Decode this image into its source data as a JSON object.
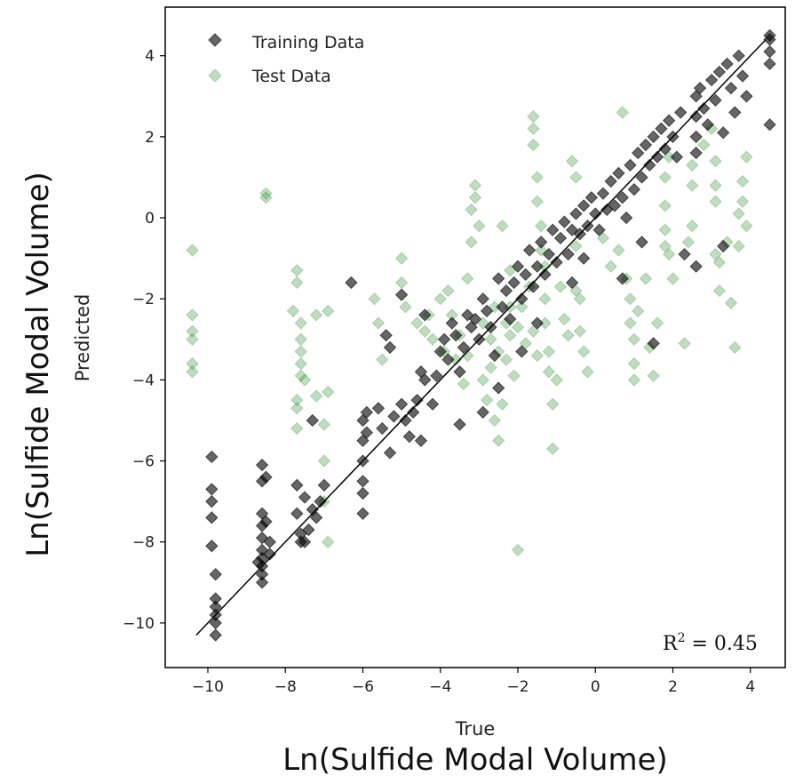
{
  "chart_data": {
    "type": "scatter",
    "title": "",
    "xlabel": "True",
    "ylabel": "Predicted",
    "xlabel_outer": "Ln(Sulfide Modal Volume)",
    "ylabel_outer": "Ln(Sulfide Modal Volume)",
    "xlim": [
      -11.1,
      4.9
    ],
    "ylim": [
      -11.1,
      5.2
    ],
    "xticks": [
      -10,
      -8,
      -6,
      -4,
      -2,
      0,
      2,
      4
    ],
    "yticks": [
      -10,
      -8,
      -6,
      -4,
      -2,
      0,
      2,
      4
    ],
    "xtick_labels": [
      "−10",
      "−8",
      "−6",
      "−4",
      "−2",
      "0",
      "2",
      "4"
    ],
    "ytick_labels": [
      "−10",
      "−8",
      "−6",
      "−4",
      "−2",
      "0",
      "2",
      "4"
    ],
    "grid": false,
    "legend_position": "top-left",
    "annotation": {
      "base": "R",
      "sup": "2",
      "rest": " = 0.45"
    },
    "identity_line": {
      "x": [
        -10.3,
        4.4
      ],
      "y": [
        -10.3,
        4.4
      ],
      "color": "#000000"
    },
    "series": [
      {
        "name": "Training Data",
        "marker": "diamond",
        "color": "#000000",
        "opacity": 0.6,
        "points": [
          [
            -9.9,
            -5.9
          ],
          [
            -9.9,
            -6.7
          ],
          [
            -9.9,
            -7.0
          ],
          [
            -9.9,
            -7.4
          ],
          [
            -9.9,
            -8.1
          ],
          [
            -9.8,
            -8.8
          ],
          [
            -9.8,
            -9.6
          ],
          [
            -9.8,
            -9.8
          ],
          [
            -9.8,
            -10.0
          ],
          [
            -9.8,
            -10.3
          ],
          [
            -9.8,
            -9.4
          ],
          [
            -8.6,
            -6.1
          ],
          [
            -8.6,
            -6.5
          ],
          [
            -8.6,
            -7.3
          ],
          [
            -8.6,
            -7.6
          ],
          [
            -8.6,
            -7.9
          ],
          [
            -8.6,
            -8.2
          ],
          [
            -8.6,
            -8.4
          ],
          [
            -8.6,
            -8.6
          ],
          [
            -8.6,
            -8.8
          ],
          [
            -8.6,
            -9.0
          ],
          [
            -8.5,
            -7.5
          ],
          [
            -8.4,
            -8.3
          ],
          [
            -8.7,
            -8.5
          ],
          [
            -8.5,
            -6.4
          ],
          [
            -8.4,
            -8.0
          ],
          [
            -7.7,
            -6.6
          ],
          [
            -7.7,
            -7.3
          ],
          [
            -7.6,
            -7.8
          ],
          [
            -7.6,
            -8.0
          ],
          [
            -7.5,
            -6.9
          ],
          [
            -7.3,
            -5.0
          ],
          [
            -7.3,
            -7.2
          ],
          [
            -7.2,
            -7.4
          ],
          [
            -7.1,
            -7.0
          ],
          [
            -7.0,
            -6.6
          ],
          [
            -7.4,
            -7.7
          ],
          [
            -7.5,
            -8.0
          ],
          [
            -6.0,
            -5.0
          ],
          [
            -6.0,
            -5.5
          ],
          [
            -6.0,
            -6.0
          ],
          [
            -6.0,
            -6.5
          ],
          [
            -6.0,
            -6.8
          ],
          [
            -6.0,
            -7.3
          ],
          [
            -5.9,
            -4.8
          ],
          [
            -5.9,
            -5.3
          ],
          [
            -5.4,
            -2.9
          ],
          [
            -5.3,
            -3.2
          ],
          [
            -5.6,
            -4.7
          ],
          [
            -5.5,
            -5.2
          ],
          [
            -5.3,
            -5.8
          ],
          [
            -5.2,
            -4.9
          ],
          [
            -5.0,
            -4.6
          ],
          [
            -4.9,
            -5.0
          ],
          [
            -4.8,
            -5.4
          ],
          [
            -4.7,
            -4.8
          ],
          [
            -4.6,
            -4.5
          ],
          [
            -4.5,
            -3.8
          ],
          [
            -4.5,
            -5.5
          ],
          [
            -4.4,
            -4.0
          ],
          [
            -4.2,
            -4.6
          ],
          [
            -4.1,
            -3.9
          ],
          [
            -4.0,
            -3.3
          ],
          [
            -3.9,
            -3.0
          ],
          [
            -3.8,
            -3.5
          ],
          [
            -3.7,
            -2.6
          ],
          [
            -3.6,
            -2.9
          ],
          [
            -3.5,
            -3.8
          ],
          [
            -3.4,
            -3.2
          ],
          [
            -3.3,
            -2.4
          ],
          [
            -3.2,
            -2.7
          ],
          [
            -3.1,
            -2.5
          ],
          [
            -3.0,
            -3.0
          ],
          [
            -2.9,
            -2.0
          ],
          [
            -2.8,
            -2.3
          ],
          [
            -2.7,
            -2.7
          ],
          [
            -2.6,
            -3.4
          ],
          [
            -2.5,
            -1.5
          ],
          [
            -2.4,
            -2.2
          ],
          [
            -2.3,
            -1.8
          ],
          [
            -2.2,
            -2.5
          ],
          [
            -2.1,
            -1.6
          ],
          [
            -2.0,
            -1.2
          ],
          [
            -1.9,
            -2.0
          ],
          [
            -1.8,
            -1.4
          ],
          [
            -1.7,
            -0.8
          ],
          [
            -1.6,
            -1.7
          ],
          [
            -1.5,
            -1.2
          ],
          [
            -1.4,
            -0.6
          ],
          [
            -1.3,
            -1.4
          ],
          [
            -1.2,
            -0.9
          ],
          [
            -1.1,
            -0.3
          ],
          [
            -1.0,
            -1.1
          ],
          [
            -0.9,
            -0.5
          ],
          [
            -0.8,
            -0.1
          ],
          [
            -0.7,
            -0.9
          ],
          [
            -0.6,
            -0.3
          ],
          [
            -0.5,
            0.1
          ],
          [
            -0.4,
            -0.4
          ],
          [
            -0.3,
            0.3
          ],
          [
            -0.2,
            -0.2
          ],
          [
            -0.1,
            0.5
          ],
          [
            0.0,
            0.1
          ],
          [
            0.1,
            -0.3
          ],
          [
            0.2,
            0.6
          ],
          [
            0.3,
            0.2
          ],
          [
            0.4,
            0.9
          ],
          [
            0.5,
            0.3
          ],
          [
            0.6,
            1.1
          ],
          [
            0.7,
            0.5
          ],
          [
            0.8,
            0.0
          ],
          [
            0.9,
            1.3
          ],
          [
            1.0,
            0.7
          ],
          [
            1.1,
            1.6
          ],
          [
            1.2,
            1.0
          ],
          [
            1.3,
            1.8
          ],
          [
            1.4,
            1.3
          ],
          [
            1.5,
            2.0
          ],
          [
            1.6,
            1.5
          ],
          [
            1.7,
            2.2
          ],
          [
            1.8,
            1.7
          ],
          [
            1.9,
            2.4
          ],
          [
            2.0,
            2.0
          ],
          [
            2.1,
            1.5
          ],
          [
            2.2,
            2.6
          ],
          [
            2.6,
            3.0
          ],
          [
            2.6,
            2.5
          ],
          [
            2.6,
            2.0
          ],
          [
            2.6,
            1.6
          ],
          [
            2.7,
            3.2
          ],
          [
            2.8,
            2.7
          ],
          [
            2.9,
            2.3
          ],
          [
            3.0,
            3.4
          ],
          [
            3.1,
            2.9
          ],
          [
            3.2,
            3.6
          ],
          [
            3.3,
            2.1
          ],
          [
            3.4,
            3.8
          ],
          [
            3.5,
            3.2
          ],
          [
            3.6,
            2.6
          ],
          [
            3.7,
            4.0
          ],
          [
            3.8,
            3.5
          ],
          [
            3.9,
            3.0
          ],
          [
            4.5,
            4.4
          ],
          [
            4.5,
            4.1
          ],
          [
            4.5,
            3.8
          ],
          [
            4.5,
            4.5
          ],
          [
            4.5,
            2.3
          ],
          [
            -2.9,
            -4.8
          ],
          [
            -3.5,
            -5.1
          ],
          [
            -2.5,
            -4.2
          ],
          [
            -1.9,
            -3.3
          ],
          [
            -1.5,
            -2.6
          ],
          [
            -0.6,
            -1.6
          ],
          [
            -0.3,
            -1.0
          ],
          [
            1.2,
            -0.6
          ],
          [
            2.3,
            -0.9
          ],
          [
            2.6,
            -1.2
          ],
          [
            3.3,
            -0.7
          ],
          [
            -6.3,
            -1.6
          ],
          [
            -5.0,
            -1.9
          ],
          [
            0.7,
            -1.5
          ],
          [
            1.5,
            -3.1
          ],
          [
            -4.4,
            -2.4
          ]
        ]
      },
      {
        "name": "Test Data",
        "marker": "diamond",
        "color": "#2e8b2e",
        "opacity": 0.3,
        "points": [
          [
            -10.4,
            -0.8
          ],
          [
            -10.4,
            -2.4
          ],
          [
            -10.4,
            -2.8
          ],
          [
            -10.4,
            -3.0
          ],
          [
            -10.4,
            -3.6
          ],
          [
            -10.4,
            -3.8
          ],
          [
            -8.5,
            0.5
          ],
          [
            -8.5,
            0.6
          ],
          [
            -7.7,
            -1.3
          ],
          [
            -7.7,
            -1.6
          ],
          [
            -7.8,
            -2.3
          ],
          [
            -7.6,
            -2.6
          ],
          [
            -7.6,
            -3.0
          ],
          [
            -7.6,
            -3.3
          ],
          [
            -7.6,
            -3.6
          ],
          [
            -7.6,
            -3.9
          ],
          [
            -7.7,
            -4.5
          ],
          [
            -7.7,
            -4.7
          ],
          [
            -7.7,
            -5.2
          ],
          [
            -7.5,
            -4.0
          ],
          [
            -7.2,
            -2.4
          ],
          [
            -7.2,
            -4.4
          ],
          [
            -7.0,
            -5.1
          ],
          [
            -7.0,
            -6.0
          ],
          [
            -7.0,
            -7.0
          ],
          [
            -6.9,
            -8.0
          ],
          [
            -6.9,
            -2.3
          ],
          [
            -6.9,
            -4.3
          ],
          [
            -5.7,
            -2.0
          ],
          [
            -5.6,
            -2.6
          ],
          [
            -5.5,
            -3.5
          ],
          [
            -5.0,
            -1.0
          ],
          [
            -5.0,
            -1.6
          ],
          [
            -4.9,
            -2.2
          ],
          [
            -4.3,
            -2.4
          ],
          [
            -4.2,
            -3.0
          ],
          [
            -4.0,
            -2.0
          ],
          [
            -3.8,
            -1.8
          ],
          [
            -3.7,
            -2.4
          ],
          [
            -3.5,
            -2.9
          ],
          [
            -3.3,
            -1.5
          ],
          [
            -3.2,
            -0.6
          ],
          [
            -3.2,
            0.2
          ],
          [
            -3.1,
            0.5
          ],
          [
            -3.1,
            0.8
          ],
          [
            -3.0,
            -0.2
          ],
          [
            -2.9,
            -4.0
          ],
          [
            -2.8,
            -4.5
          ],
          [
            -2.7,
            -3.7
          ],
          [
            -2.6,
            -5.0
          ],
          [
            -2.5,
            -5.5
          ],
          [
            -2.4,
            -4.6
          ],
          [
            -2.3,
            -3.5
          ],
          [
            -2.2,
            -2.9
          ],
          [
            -2.1,
            -3.9
          ],
          [
            -2.0,
            -8.2
          ],
          [
            -2.2,
            -1.3
          ],
          [
            -2.4,
            -0.2
          ],
          [
            -2.2,
            -2.2
          ],
          [
            -2.0,
            -2.7
          ],
          [
            -1.6,
            2.5
          ],
          [
            -1.6,
            2.2
          ],
          [
            -1.6,
            1.8
          ],
          [
            -1.5,
            1.0
          ],
          [
            -1.5,
            0.4
          ],
          [
            -1.4,
            -0.2
          ],
          [
            -1.4,
            -0.8
          ],
          [
            -1.3,
            -2.0
          ],
          [
            -1.3,
            -2.6
          ],
          [
            -1.2,
            -3.3
          ],
          [
            -1.2,
            -3.8
          ],
          [
            -1.1,
            -4.6
          ],
          [
            -1.1,
            -5.7
          ],
          [
            -1.0,
            -4.0
          ],
          [
            -0.6,
            1.4
          ],
          [
            -0.5,
            1.0
          ],
          [
            -0.5,
            -1.8
          ],
          [
            -0.4,
            -2.0
          ],
          [
            -0.4,
            -2.8
          ],
          [
            -0.3,
            -3.3
          ],
          [
            -0.2,
            -3.8
          ],
          [
            -0.5,
            -0.7
          ],
          [
            0.7,
            2.6
          ],
          [
            0.8,
            -1.5
          ],
          [
            0.9,
            -2.0
          ],
          [
            0.9,
            -2.6
          ],
          [
            1.0,
            -3.0
          ],
          [
            1.0,
            -3.6
          ],
          [
            1.0,
            -4.0
          ],
          [
            1.1,
            -2.3
          ],
          [
            1.4,
            -3.2
          ],
          [
            1.5,
            -3.9
          ],
          [
            1.8,
            -0.3
          ],
          [
            1.8,
            0.3
          ],
          [
            1.8,
            1.0
          ],
          [
            1.9,
            1.5
          ],
          [
            1.8,
            -0.7
          ],
          [
            1.9,
            -0.9
          ],
          [
            2.3,
            -3.1
          ],
          [
            2.4,
            -0.6
          ],
          [
            2.5,
            -0.2
          ],
          [
            2.5,
            0.8
          ],
          [
            2.5,
            1.3
          ],
          [
            3.1,
            0.4
          ],
          [
            3.1,
            0.8
          ],
          [
            3.1,
            1.4
          ],
          [
            3.1,
            -0.9
          ],
          [
            3.2,
            -1.1
          ],
          [
            3.2,
            -1.8
          ],
          [
            3.4,
            -0.6
          ],
          [
            3.5,
            -2.1
          ],
          [
            3.6,
            -3.2
          ],
          [
            3.7,
            -0.7
          ],
          [
            3.7,
            0.1
          ],
          [
            3.8,
            0.4
          ],
          [
            3.8,
            0.9
          ],
          [
            3.9,
            1.5
          ],
          [
            3.9,
            -0.2
          ],
          [
            -4.6,
            -2.6
          ],
          [
            -4.4,
            -2.8
          ],
          [
            -3.9,
            -3.3
          ],
          [
            -3.6,
            -3.5
          ],
          [
            -3.4,
            -4.1
          ],
          [
            -3.3,
            -3.4
          ],
          [
            -2.9,
            -2.6
          ],
          [
            -2.7,
            -3.0
          ],
          [
            -2.6,
            -2.2
          ],
          [
            -2.5,
            -3.3
          ],
          [
            -2.3,
            -2.6
          ],
          [
            -1.9,
            -2.2
          ],
          [
            -1.8,
            -3.1
          ],
          [
            -1.7,
            -1.7
          ],
          [
            -1.6,
            -2.8
          ],
          [
            -1.5,
            -3.4
          ],
          [
            -1.3,
            -1.2
          ],
          [
            -0.9,
            -1.7
          ],
          [
            -0.8,
            -2.5
          ],
          [
            -0.7,
            -2.9
          ],
          [
            0.2,
            -0.5
          ],
          [
            0.4,
            -1.2
          ],
          [
            0.6,
            -0.8
          ],
          [
            1.3,
            -1.5
          ],
          [
            1.6,
            -2.6
          ],
          [
            2.0,
            -1.5
          ],
          [
            2.8,
            1.8
          ],
          [
            3.0,
            2.2
          ]
        ]
      }
    ]
  }
}
